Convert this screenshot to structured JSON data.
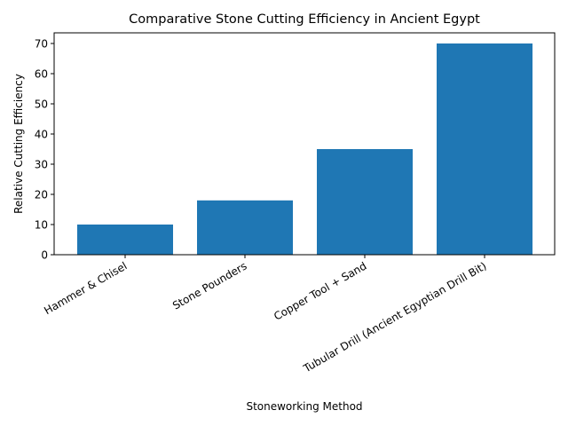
{
  "chart_data": {
    "type": "bar",
    "title": "Comparative Stone Cutting Efficiency in Ancient Egypt",
    "xlabel": "Stoneworking Method",
    "ylabel": "Relative Cutting Efficiency",
    "categories": [
      "Hammer & Chisel",
      "Stone Pounders",
      "Copper Tool + Sand",
      "Tubular Drill (Ancient Egyptian Drill Bit)"
    ],
    "values": [
      10,
      18,
      35,
      70
    ],
    "ylim": [
      0,
      73.5
    ],
    "yticks": [
      0,
      10,
      20,
      30,
      40,
      50,
      60,
      70
    ],
    "bar_color": "#1f77b4",
    "grid": false,
    "legend": null,
    "xtick_rotation": -30
  }
}
